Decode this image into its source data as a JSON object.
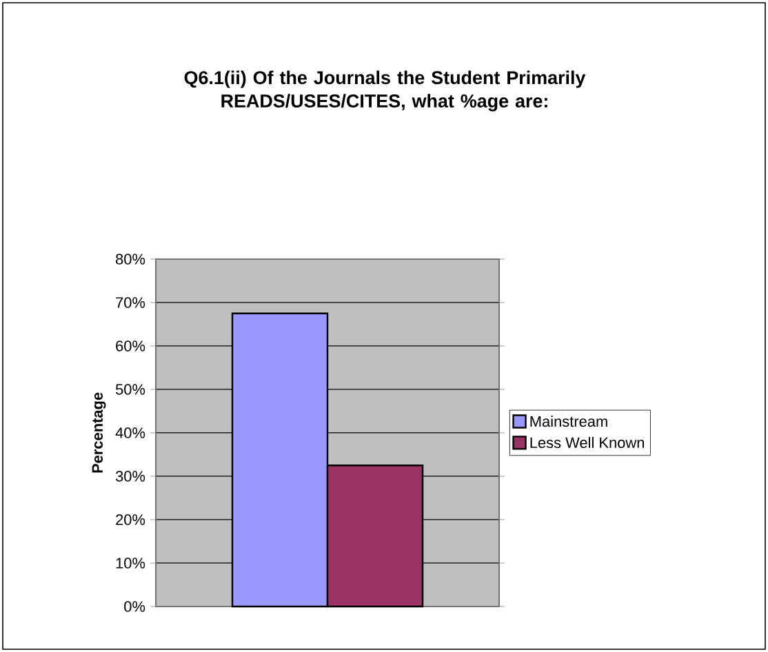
{
  "chart_data": {
    "type": "bar",
    "title": "Q6.1(ii) Of the Journals the Student Primarily READS/USES/CITES, what %age are:",
    "ylabel": "Percentage",
    "categories": [
      null
    ],
    "series": [
      {
        "name": "Mainstream",
        "color": "#9999ff",
        "values": [
          67.5
        ]
      },
      {
        "name": "Less Well Known",
        "color": "#993366",
        "values": [
          32.5
        ]
      }
    ],
    "ylim": [
      0,
      80
    ],
    "yticks": [
      {
        "value": 0,
        "label": "0%"
      },
      {
        "value": 10,
        "label": "10%"
      },
      {
        "value": 20,
        "label": "20%"
      },
      {
        "value": 30,
        "label": "30%"
      },
      {
        "value": 40,
        "label": "40%"
      },
      {
        "value": 50,
        "label": "50%"
      },
      {
        "value": 60,
        "label": "60%"
      },
      {
        "value": 70,
        "label": "70%"
      },
      {
        "value": 80,
        "label": "80%"
      }
    ],
    "grid": "y",
    "legend": "right"
  }
}
